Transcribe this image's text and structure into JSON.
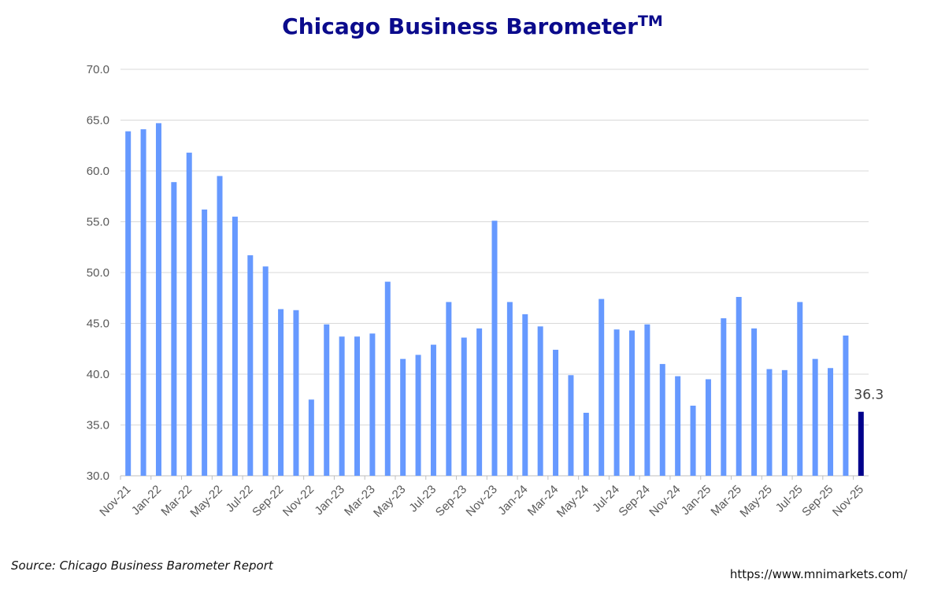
{
  "chart_data": {
    "type": "bar",
    "title": "Chicago Business Barometer",
    "title_superscript": "TM",
    "ylim": [
      30,
      70
    ],
    "yticks": [
      "30.0",
      "35.0",
      "40.0",
      "45.0",
      "50.0",
      "55.0",
      "60.0",
      "65.0",
      "70.0"
    ],
    "grid": true,
    "categories": [
      "Nov-21",
      "Dec-21",
      "Jan-22",
      "Feb-22",
      "Mar-22",
      "Apr-22",
      "May-22",
      "Jun-22",
      "Jul-22",
      "Aug-22",
      "Sep-22",
      "Oct-22",
      "Nov-22",
      "Dec-22",
      "Jan-23",
      "Feb-23",
      "Mar-23",
      "Apr-23",
      "May-23",
      "Jun-23",
      "Jul-23",
      "Aug-23",
      "Sep-23",
      "Oct-23",
      "Nov-23",
      "Dec-23",
      "Jan-24",
      "Feb-24",
      "Mar-24",
      "Apr-24",
      "May-24",
      "Jun-24",
      "Jul-24",
      "Aug-24",
      "Sep-24",
      "Oct-24",
      "Nov-24",
      "Dec-24",
      "Jan-25",
      "Feb-25",
      "Mar-25",
      "Apr-25",
      "May-25",
      "Jun-25",
      "Jul-25",
      "Aug-25",
      "Sep-25",
      "Oct-25",
      "Nov-25"
    ],
    "xtick_labels": [
      "Nov-21",
      "Jan-22",
      "Mar-22",
      "May-22",
      "Jul-22",
      "Sep-22",
      "Nov-22",
      "Jan-23",
      "Mar-23",
      "May-23",
      "Jul-23",
      "Sep-23",
      "Nov-23",
      "Jan-24",
      "Mar-24",
      "May-24",
      "Jul-24",
      "Sep-24",
      "Nov-24",
      "Jan-25",
      "Mar-25",
      "May-25",
      "Jul-25",
      "Sep-25",
      "Nov-25"
    ],
    "values": [
      63.9,
      64.1,
      64.7,
      58.9,
      61.8,
      56.2,
      59.5,
      55.5,
      51.7,
      50.6,
      46.4,
      46.3,
      37.5,
      44.9,
      43.7,
      43.7,
      44.0,
      49.1,
      41.5,
      41.9,
      42.9,
      47.1,
      43.6,
      44.5,
      55.1,
      47.1,
      45.9,
      44.7,
      42.4,
      39.9,
      36.2,
      47.4,
      44.4,
      44.3,
      44.9,
      41.0,
      39.8,
      36.9,
      39.5,
      45.5,
      47.6,
      44.5,
      40.5,
      40.4,
      47.1,
      41.5,
      40.6,
      43.8,
      36.3
    ],
    "colors": {
      "bar": "#6699ff",
      "highlight_bar": "#00008b",
      "grid": "#d9d9d9",
      "axis_text": "#595959",
      "title": "#0b0b8c"
    },
    "highlight_index": 48,
    "annotation": {
      "text": "36.3",
      "index": 48
    }
  },
  "footer": {
    "source": "Source: Chicago Business Barometer Report",
    "url": "https://www.mnimarkets.com/"
  }
}
